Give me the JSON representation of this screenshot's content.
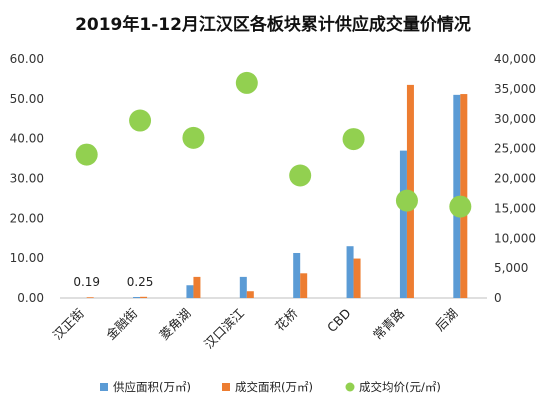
{
  "chart_data": {
    "type": "bar",
    "title": "2019年1-12月江汉区各板块累计供应成交量价情况",
    "categories": [
      "汉正街",
      "金融街",
      "菱角湖",
      "汉口滨江",
      "花桥",
      "CBD",
      "常青路",
      "后湖"
    ],
    "series": [
      {
        "name": "供应面积(万㎡)",
        "type": "bar",
        "axis": "left",
        "color": "#5b9bd5",
        "values": [
          0,
          0.25,
          3.2,
          5.3,
          11.3,
          13.0,
          37.0,
          51.0
        ]
      },
      {
        "name": "成交面积(万㎡)",
        "type": "bar",
        "axis": "left",
        "color": "#ed7d31",
        "values": [
          0.19,
          0.3,
          5.3,
          1.7,
          6.2,
          9.9,
          53.5,
          51.2
        ]
      },
      {
        "name": "成交均价(元/㎡)",
        "type": "scatter",
        "axis": "right",
        "color": "#92d050",
        "values": [
          24000,
          29700,
          26800,
          36000,
          20500,
          26600,
          16300,
          15300
        ]
      }
    ],
    "data_labels": [
      {
        "category": "汉正街",
        "text": "0.19"
      },
      {
        "category": "金融街",
        "text": "0.25"
      }
    ],
    "y_left": {
      "min": 0,
      "max": 60,
      "ticks": [
        "0.00",
        "10.00",
        "20.00",
        "30.00",
        "40.00",
        "50.00",
        "60.00"
      ]
    },
    "y_right": {
      "min": 0,
      "max": 40000,
      "ticks": [
        "0",
        "5,000",
        "10,000",
        "15,000",
        "20,000",
        "25,000",
        "30,000",
        "35,000",
        "40,000"
      ]
    },
    "grid": false,
    "legend_position": "bottom"
  }
}
